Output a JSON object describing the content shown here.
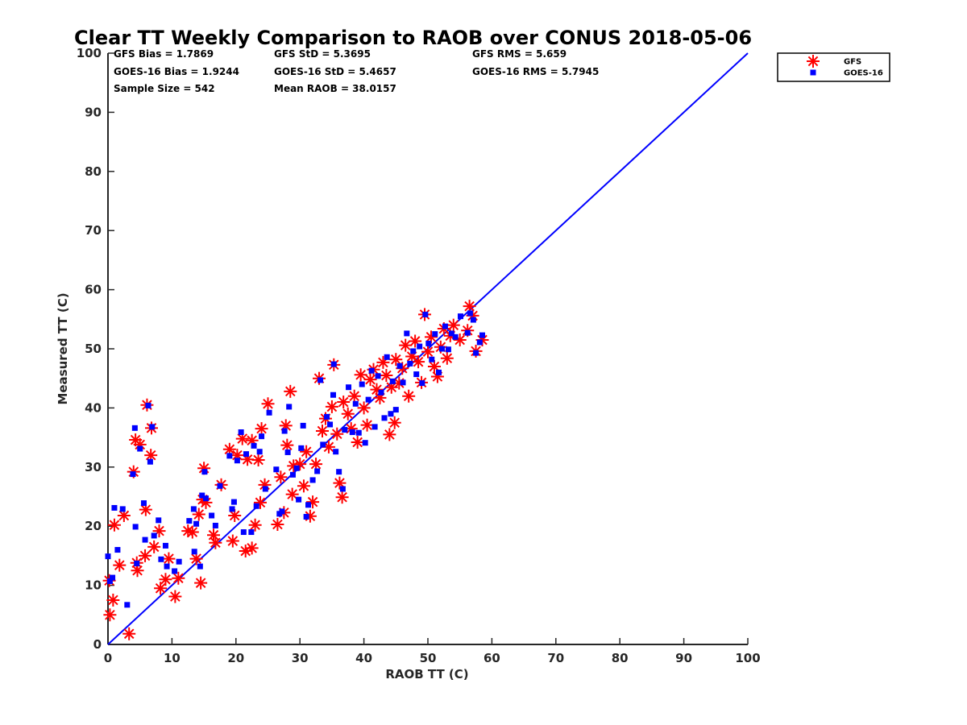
{
  "chart_data": {
    "type": "scatter",
    "title": "Clear TT Weekly Comparison to RAOB over CONUS 2018-05-06",
    "xlabel": "RAOB TT (C)",
    "ylabel": "Measured TT (C)",
    "xlim": [
      0,
      100
    ],
    "ylim": [
      0,
      100
    ],
    "xticks": [
      0,
      10,
      20,
      30,
      40,
      50,
      60,
      70,
      80,
      90,
      100
    ],
    "yticks": [
      0,
      10,
      20,
      30,
      40,
      50,
      60,
      70,
      80,
      90,
      100
    ],
    "reference_line": {
      "name": "1:1 line",
      "x": [
        0,
        100
      ],
      "y": [
        0,
        100
      ],
      "color": "#0000ff"
    },
    "stats": [
      [
        "GFS Bias = 1.7869",
        "GFS StD = 5.3695",
        "GFS RMS = 5.659"
      ],
      [
        "GOES-16 Bias = 1.9244",
        "GOES-16 StD = 5.4657",
        "GOES-16 RMS = 5.7945"
      ],
      [
        "Sample Size = 542",
        "Mean RAOB = 38.0157",
        ""
      ]
    ],
    "legend": {
      "position": "top-right",
      "entries": [
        "GFS",
        "GOES-16"
      ]
    },
    "series": [
      {
        "name": "GFS",
        "marker": "asterisk",
        "color": "#ff0000",
        "points": [
          [
            0.2,
            10.8
          ],
          [
            0.3,
            5.0
          ],
          [
            0.8,
            7.5
          ],
          [
            1.0,
            20.2
          ],
          [
            1.8,
            13.4
          ],
          [
            2.5,
            21.8
          ],
          [
            3.3,
            1.8
          ],
          [
            4.0,
            29.2
          ],
          [
            4.3,
            34.6
          ],
          [
            4.5,
            13.8
          ],
          [
            4.6,
            12.5
          ],
          [
            5.0,
            33.8
          ],
          [
            5.9,
            22.8
          ],
          [
            5.8,
            15.0
          ],
          [
            6.1,
            40.5
          ],
          [
            6.7,
            32.0
          ],
          [
            6.8,
            36.6
          ],
          [
            7.2,
            16.5
          ],
          [
            8.0,
            19.2
          ],
          [
            8.2,
            9.5
          ],
          [
            9.0,
            11.0
          ],
          [
            9.5,
            14.5
          ],
          [
            10.5,
            8.1
          ],
          [
            11.0,
            11.2
          ],
          [
            12.5,
            19.2
          ],
          [
            13.2,
            19.0
          ],
          [
            13.8,
            14.5
          ],
          [
            14.2,
            22.0
          ],
          [
            14.5,
            10.4
          ],
          [
            14.8,
            24.5
          ],
          [
            15.0,
            29.8
          ],
          [
            15.3,
            24.0
          ],
          [
            16.5,
            18.5
          ],
          [
            16.8,
            17.2
          ],
          [
            17.7,
            27.0
          ],
          [
            19.0,
            33.0
          ],
          [
            19.5,
            17.5
          ],
          [
            19.8,
            21.8
          ],
          [
            20.2,
            32.0
          ],
          [
            21.0,
            34.8
          ],
          [
            21.5,
            15.8
          ],
          [
            21.8,
            31.3
          ],
          [
            22.5,
            16.3
          ],
          [
            22.5,
            34.5
          ],
          [
            23.0,
            20.2
          ],
          [
            23.5,
            31.2
          ],
          [
            23.8,
            24.0
          ],
          [
            24.0,
            36.5
          ],
          [
            24.5,
            27.0
          ],
          [
            25.0,
            40.7
          ],
          [
            26.5,
            20.3
          ],
          [
            27.0,
            28.3
          ],
          [
            27.5,
            22.3
          ],
          [
            27.8,
            37.0
          ],
          [
            28.0,
            33.7
          ],
          [
            28.5,
            42.8
          ],
          [
            28.8,
            25.4
          ],
          [
            29.0,
            30.2
          ],
          [
            30.0,
            30.5
          ],
          [
            30.6,
            26.8
          ],
          [
            31.0,
            32.6
          ],
          [
            31.6,
            21.7
          ],
          [
            32.0,
            24.1
          ],
          [
            32.5,
            30.5
          ],
          [
            33.0,
            45.0
          ],
          [
            33.5,
            36.1
          ],
          [
            34.0,
            38.2
          ],
          [
            34.5,
            33.4
          ],
          [
            35.0,
            40.2
          ],
          [
            35.3,
            47.3
          ],
          [
            35.8,
            35.6
          ],
          [
            36.2,
            27.3
          ],
          [
            36.6,
            24.9
          ],
          [
            36.8,
            41.0
          ],
          [
            37.5,
            39.0
          ],
          [
            38.0,
            36.5
          ],
          [
            38.5,
            42.0
          ],
          [
            39.0,
            34.2
          ],
          [
            39.5,
            45.6
          ],
          [
            40.0,
            40.0
          ],
          [
            40.5,
            37.1
          ],
          [
            41.0,
            44.8
          ],
          [
            41.5,
            46.5
          ],
          [
            42.0,
            43.1
          ],
          [
            42.5,
            41.7
          ],
          [
            43.0,
            47.7
          ],
          [
            43.5,
            45.5
          ],
          [
            44.0,
            35.5
          ],
          [
            44.3,
            43.5
          ],
          [
            44.8,
            37.5
          ],
          [
            45.0,
            48.2
          ],
          [
            45.5,
            44.2
          ],
          [
            46.0,
            46.7
          ],
          [
            46.5,
            50.6
          ],
          [
            47.0,
            42.0
          ],
          [
            47.5,
            48.7
          ],
          [
            48.0,
            51.3
          ],
          [
            48.5,
            47.8
          ],
          [
            49.0,
            44.3
          ],
          [
            49.5,
            55.8
          ],
          [
            50.0,
            49.5
          ],
          [
            50.5,
            52.0
          ],
          [
            51.0,
            47.0
          ],
          [
            51.5,
            45.3
          ],
          [
            52.0,
            50.3
          ],
          [
            52.5,
            53.4
          ],
          [
            53.0,
            48.4
          ],
          [
            53.5,
            52.2
          ],
          [
            54.0,
            54.0
          ],
          [
            55.0,
            51.5
          ],
          [
            56.2,
            53.1
          ],
          [
            56.5,
            57.2
          ],
          [
            57.0,
            55.6
          ],
          [
            57.5,
            49.6
          ],
          [
            58.5,
            51.5
          ]
        ]
      },
      {
        "name": "GOES-16",
        "marker": "square",
        "color": "#0000ff",
        "points": [
          [
            0.0,
            14.9
          ],
          [
            0.3,
            10.7
          ],
          [
            0.7,
            11.3
          ],
          [
            1.0,
            23.1
          ],
          [
            1.5,
            16.0
          ],
          [
            2.3,
            22.9
          ],
          [
            3.0,
            6.7
          ],
          [
            3.9,
            28.8
          ],
          [
            4.2,
            36.6
          ],
          [
            4.3,
            19.9
          ],
          [
            4.5,
            13.7
          ],
          [
            5.0,
            33.1
          ],
          [
            5.6,
            23.9
          ],
          [
            5.8,
            17.7
          ],
          [
            6.3,
            40.4
          ],
          [
            6.6,
            30.9
          ],
          [
            6.9,
            36.8
          ],
          [
            7.2,
            18.4
          ],
          [
            7.9,
            21.0
          ],
          [
            8.3,
            14.4
          ],
          [
            9.0,
            16.7
          ],
          [
            9.2,
            13.2
          ],
          [
            10.4,
            12.4
          ],
          [
            11.1,
            14.0
          ],
          [
            12.7,
            20.9
          ],
          [
            13.4,
            22.9
          ],
          [
            13.5,
            15.7
          ],
          [
            13.8,
            20.4
          ],
          [
            14.4,
            13.2
          ],
          [
            14.7,
            25.2
          ],
          [
            15.1,
            29.2
          ],
          [
            15.3,
            24.7
          ],
          [
            16.2,
            21.8
          ],
          [
            16.8,
            20.1
          ],
          [
            17.5,
            26.8
          ],
          [
            19.0,
            31.9
          ],
          [
            19.4,
            22.9
          ],
          [
            19.7,
            24.1
          ],
          [
            20.2,
            31.1
          ],
          [
            20.8,
            35.9
          ],
          [
            21.2,
            19.0
          ],
          [
            21.6,
            32.2
          ],
          [
            22.4,
            19.0
          ],
          [
            22.8,
            33.6
          ],
          [
            23.2,
            23.4
          ],
          [
            23.7,
            32.6
          ],
          [
            24.0,
            35.2
          ],
          [
            24.6,
            26.3
          ],
          [
            25.2,
            39.2
          ],
          [
            26.3,
            29.6
          ],
          [
            26.8,
            22.1
          ],
          [
            27.2,
            22.5
          ],
          [
            27.6,
            36.1
          ],
          [
            28.1,
            32.5
          ],
          [
            28.3,
            40.2
          ],
          [
            28.9,
            28.7
          ],
          [
            29.5,
            29.8
          ],
          [
            29.8,
            24.5
          ],
          [
            30.2,
            33.2
          ],
          [
            30.5,
            37.0
          ],
          [
            31.0,
            21.6
          ],
          [
            31.3,
            23.6
          ],
          [
            32.0,
            27.8
          ],
          [
            32.7,
            29.3
          ],
          [
            33.2,
            44.7
          ],
          [
            33.6,
            33.8
          ],
          [
            34.2,
            38.5
          ],
          [
            34.7,
            37.2
          ],
          [
            35.2,
            42.2
          ],
          [
            35.3,
            47.4
          ],
          [
            35.6,
            32.6
          ],
          [
            36.1,
            29.2
          ],
          [
            36.7,
            26.3
          ],
          [
            37.0,
            36.3
          ],
          [
            37.6,
            43.5
          ],
          [
            38.2,
            35.9
          ],
          [
            38.7,
            40.7
          ],
          [
            39.2,
            35.8
          ],
          [
            39.7,
            44.0
          ],
          [
            40.2,
            34.1
          ],
          [
            40.7,
            41.4
          ],
          [
            41.2,
            46.3
          ],
          [
            41.7,
            36.8
          ],
          [
            42.2,
            45.4
          ],
          [
            42.7,
            42.6
          ],
          [
            43.2,
            38.3
          ],
          [
            43.6,
            48.6
          ],
          [
            44.2,
            39.0
          ],
          [
            44.5,
            44.5
          ],
          [
            45.0,
            39.7
          ],
          [
            45.6,
            47.1
          ],
          [
            46.1,
            44.3
          ],
          [
            46.7,
            52.6
          ],
          [
            47.2,
            47.5
          ],
          [
            47.7,
            49.6
          ],
          [
            48.2,
            45.7
          ],
          [
            48.7,
            50.4
          ],
          [
            49.1,
            44.2
          ],
          [
            49.6,
            55.8
          ],
          [
            50.1,
            50.9
          ],
          [
            50.6,
            48.2
          ],
          [
            51.1,
            52.5
          ],
          [
            51.7,
            46.0
          ],
          [
            52.2,
            50.0
          ],
          [
            52.7,
            53.8
          ],
          [
            53.2,
            49.9
          ],
          [
            53.7,
            52.6
          ],
          [
            54.3,
            52.0
          ],
          [
            55.1,
            55.5
          ],
          [
            56.2,
            52.7
          ],
          [
            56.6,
            56.0
          ],
          [
            57.1,
            54.9
          ],
          [
            57.5,
            49.3
          ],
          [
            58.1,
            51.1
          ],
          [
            58.5,
            52.3
          ]
        ]
      }
    ]
  }
}
